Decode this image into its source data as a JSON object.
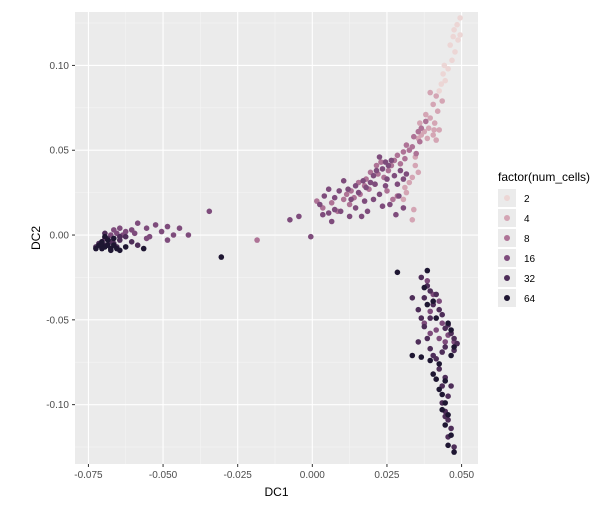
{
  "chart_data": {
    "type": "scatter",
    "xlabel": "DC1",
    "ylabel": "DC2",
    "xlim": [
      -0.0795,
      0.0555
    ],
    "ylim": [
      -0.135,
      0.1315
    ],
    "x_ticks": [
      {
        "value": -0.075,
        "label": "-0.075"
      },
      {
        "value": -0.05,
        "label": "-0.050"
      },
      {
        "value": -0.025,
        "label": "-0.025"
      },
      {
        "value": 0.0,
        "label": "0.000"
      },
      {
        "value": 0.025,
        "label": "0.025"
      },
      {
        "value": 0.05,
        "label": "0.050"
      }
    ],
    "y_ticks": [
      {
        "value": -0.1,
        "label": "-0.10"
      },
      {
        "value": -0.05,
        "label": "-0.05"
      },
      {
        "value": 0.0,
        "label": "0.00"
      },
      {
        "value": 0.05,
        "label": "0.05"
      },
      {
        "value": 0.1,
        "label": "0.10"
      }
    ],
    "grid": true,
    "legend": {
      "title": "factor(num_cells)",
      "position": "right",
      "entries": [
        {
          "label": "2",
          "color": "#ECD6D5"
        },
        {
          "label": "4",
          "color": "#D4A5B4"
        },
        {
          "label": "8",
          "color": "#AE7396"
        },
        {
          "label": "16",
          "color": "#7E4C7C"
        },
        {
          "label": "32",
          "color": "#4E2E59"
        },
        {
          "label": "64",
          "color": "#1E1632"
        }
      ]
    },
    "series": [
      {
        "name": "2",
        "points": [
          [
            0.0495,
            0.128
          ],
          [
            0.0485,
            0.124
          ],
          [
            0.0475,
            0.121
          ],
          [
            0.0495,
            0.118
          ],
          [
            0.0488,
            0.115
          ],
          [
            0.0472,
            0.117
          ],
          [
            0.0462,
            0.112
          ],
          [
            0.0478,
            0.108
          ],
          [
            0.0468,
            0.103
          ],
          [
            0.0455,
            0.098
          ],
          [
            0.0442,
            0.1
          ],
          [
            0.0438,
            0.095
          ],
          [
            0.0445,
            0.091
          ],
          [
            0.0432,
            0.089
          ],
          [
            0.0425,
            0.085
          ]
        ]
      },
      {
        "name": "4",
        "points": [
          [
            0.0415,
            0.082
          ],
          [
            0.0395,
            0.084
          ],
          [
            0.0435,
            0.079
          ],
          [
            0.0405,
            0.077
          ],
          [
            0.042,
            0.073
          ],
          [
            0.038,
            0.071
          ],
          [
            0.0395,
            0.069
          ],
          [
            0.041,
            0.066
          ],
          [
            0.039,
            0.063
          ],
          [
            0.0425,
            0.062
          ],
          [
            0.0375,
            0.061
          ],
          [
            0.036,
            0.066
          ],
          [
            0.0405,
            0.059
          ],
          [
            0.0385,
            0.057
          ],
          [
            0.0415,
            0.056
          ],
          [
            0.0365,
            0.059
          ],
          [
            0.0355,
            0.057
          ],
          [
            0.0408,
            0.062
          ],
          [
            0.0345,
            0.046
          ],
          [
            0.0345,
            0.041
          ],
          [
            0.0355,
            0.037
          ],
          [
            0.0335,
            0.034
          ],
          [
            0.0325,
            0.031
          ],
          [
            0.031,
            0.028
          ],
          [
            0.0315,
            0.025
          ],
          [
            0.0305,
            0.021
          ],
          [
            0.0335,
            0.009
          ],
          [
            0.034,
            0.015
          ]
        ]
      },
      {
        "name": "8",
        "points": [
          [
            0.038,
            0.067
          ],
          [
            0.0365,
            0.063
          ],
          [
            0.0355,
            0.061
          ],
          [
            0.034,
            0.058
          ],
          [
            0.036,
            0.055
          ],
          [
            0.0335,
            0.052
          ],
          [
            0.0325,
            0.05
          ],
          [
            0.0348,
            0.048
          ],
          [
            0.0315,
            0.053
          ],
          [
            0.0305,
            0.049
          ],
          [
            0.031,
            0.045
          ],
          [
            0.0295,
            0.042
          ],
          [
            0.0285,
            0.047
          ],
          [
            0.0275,
            0.044
          ],
          [
            0.0265,
            0.041
          ],
          [
            0.0255,
            0.038
          ],
          [
            0.024,
            0.034
          ],
          [
            0.022,
            0.036
          ],
          [
            0.021,
            0.03
          ],
          [
            0.019,
            0.027
          ],
          [
            0.0175,
            0.029
          ],
          [
            0.016,
            0.024
          ],
          [
            0.014,
            0.022
          ],
          [
            0.0125,
            0.018
          ],
          [
            0.0105,
            0.021
          ],
          [
            0.0085,
            0.014
          ],
          [
            0.0065,
            0.019
          ],
          [
            0.0035,
            0.016
          ],
          [
            0.0015,
            0.02
          ],
          [
            0.025,
            0.026
          ],
          [
            0.027,
            0.021
          ],
          [
            0.0285,
            0.023
          ],
          [
            0.023,
            0.043
          ],
          [
            0.0215,
            0.041
          ],
          [
            0.0195,
            0.037
          ],
          [
            0.018,
            0.033
          ],
          [
            0.0155,
            0.031
          ],
          [
            0.013,
            0.026
          ],
          [
            0.0115,
            0.024
          ],
          [
            -0.0185,
            -0.003
          ]
        ]
      },
      {
        "name": "16",
        "points": [
          [
            0.0265,
            0.044
          ],
          [
            0.0255,
            0.041
          ],
          [
            0.0245,
            0.043
          ],
          [
            0.0235,
            0.039
          ],
          [
            0.0225,
            0.046
          ],
          [
            0.0215,
            0.038
          ],
          [
            0.0205,
            0.035
          ],
          [
            0.0195,
            0.031
          ],
          [
            0.018,
            0.028
          ],
          [
            0.017,
            0.032
          ],
          [
            0.0155,
            0.025
          ],
          [
            0.0145,
            0.029
          ],
          [
            0.013,
            0.021
          ],
          [
            0.012,
            0.027
          ],
          [
            0.0105,
            0.032
          ],
          [
            0.009,
            0.026
          ],
          [
            0.0075,
            0.022
          ],
          [
            0.0055,
            0.027
          ],
          [
            0.004,
            0.023
          ],
          [
            0.0025,
            0.018
          ],
          [
            0.0035,
            0.012
          ],
          [
            0.0055,
            0.013
          ],
          [
            0.0065,
            0.008
          ],
          [
            0.0075,
            0.015
          ],
          [
            0.0095,
            0.014
          ],
          [
            0.0125,
            0.011
          ],
          [
            0.0145,
            0.016
          ],
          [
            0.0165,
            0.011
          ],
          [
            0.0185,
            0.014
          ],
          [
            0.0205,
            0.021
          ],
          [
            0.0225,
            0.024
          ],
          [
            0.0245,
            0.029
          ],
          [
            0.0275,
            0.035
          ],
          [
            0.0285,
            0.03
          ],
          [
            0.0295,
            0.038
          ],
          [
            0.0305,
            0.033
          ],
          [
            0.0315,
            0.036
          ],
          [
            0.025,
            0.033
          ],
          [
            0.021,
            0.03
          ],
          [
            0.0175,
            0.02
          ],
          [
            0.0235,
            0.017
          ],
          [
            0.026,
            0.018
          ],
          [
            0.0305,
            0.016
          ],
          [
            0.028,
            0.012
          ],
          [
            0.029,
            0.023
          ],
          [
            -0.0075,
            0.009
          ],
          [
            -0.0045,
            0.011
          ],
          [
            -0.0005,
            -0.001
          ],
          [
            -0.0345,
            0.014
          ],
          [
            -0.0415,
            0.0
          ],
          [
            -0.0445,
            0.004
          ],
          [
            -0.0485,
            0.005
          ],
          [
            -0.0525,
            0.006
          ],
          [
            -0.0555,
            0.004
          ],
          [
            -0.0585,
            0.007
          ],
          [
            -0.0605,
            0.003
          ],
          [
            -0.0625,
            0.002
          ],
          [
            -0.0645,
            0.004
          ],
          [
            -0.0635,
            0.0
          ],
          [
            -0.0655,
            0.001
          ],
          [
            -0.0675,
            0.0
          ],
          [
            -0.0695,
            -0.002
          ],
          [
            -0.0595,
            0.001
          ],
          [
            -0.0545,
            -0.001
          ],
          [
            -0.0505,
            0.002
          ],
          [
            -0.0465,
            0.0
          ],
          [
            -0.0485,
            -0.003
          ],
          [
            -0.0555,
            -0.002
          ],
          [
            -0.0665,
            0.003
          ],
          [
            0.0395,
            -0.045
          ],
          [
            0.0375,
            -0.052
          ],
          [
            0.0415,
            -0.056
          ],
          [
            0.0435,
            -0.052
          ],
          [
            0.0395,
            -0.058
          ],
          [
            0.0425,
            -0.061
          ],
          [
            0.0455,
            -0.059
          ],
          [
            0.0445,
            -0.063
          ],
          [
            0.0475,
            -0.063
          ],
          [
            0.0385,
            -0.027
          ],
          [
            0.0405,
            -0.035
          ],
          [
            0.0425,
            -0.039
          ]
        ]
      },
      {
        "name": "32",
        "points": [
          [
            0.0365,
            -0.025
          ],
          [
            0.0385,
            -0.03
          ],
          [
            0.0395,
            -0.033
          ],
          [
            0.0375,
            -0.037
          ],
          [
            0.0415,
            -0.035
          ],
          [
            0.0405,
            -0.041
          ],
          [
            0.0425,
            -0.044
          ],
          [
            0.0395,
            -0.049
          ],
          [
            0.0435,
            -0.047
          ],
          [
            0.0445,
            -0.055
          ],
          [
            0.0455,
            -0.053
          ],
          [
            0.0465,
            -0.058
          ],
          [
            0.0475,
            -0.061
          ],
          [
            0.0485,
            -0.064
          ],
          [
            0.0445,
            -0.066
          ],
          [
            0.0475,
            -0.068
          ],
          [
            0.0435,
            -0.069
          ],
          [
            0.0415,
            -0.073
          ],
          [
            0.0425,
            -0.079
          ],
          [
            0.0445,
            -0.084
          ],
          [
            0.0435,
            -0.089
          ],
          [
            0.0455,
            -0.095
          ],
          [
            0.0435,
            -0.099
          ],
          [
            0.0445,
            -0.104
          ],
          [
            0.0455,
            -0.109
          ],
          [
            0.0465,
            -0.114
          ],
          [
            0.0455,
            -0.119
          ],
          [
            0.0475,
            -0.125
          ],
          [
            0.0335,
            -0.037
          ],
          [
            0.0355,
            -0.044
          ],
          [
            0.0365,
            -0.049
          ],
          [
            0.0375,
            -0.054
          ],
          [
            0.0385,
            -0.061
          ],
          [
            0.0395,
            -0.067
          ],
          [
            0.0405,
            -0.071
          ],
          [
            0.0355,
            -0.063
          ],
          [
            -0.0625,
            -0.001
          ],
          [
            -0.0645,
            -0.003
          ],
          [
            -0.0665,
            -0.005
          ],
          [
            -0.0685,
            -0.002
          ],
          [
            -0.0705,
            -0.004
          ],
          [
            -0.0725,
            -0.007
          ],
          [
            -0.0695,
            -0.006
          ],
          [
            -0.0655,
            -0.007
          ],
          [
            -0.0675,
            -0.004
          ],
          [
            -0.0715,
            -0.005
          ],
          [
            -0.0605,
            -0.004
          ],
          [
            -0.0585,
            -0.006
          ],
          [
            -0.0695,
            0.001
          ],
          [
            -0.0645,
            -0.001
          ],
          [
            0.0465,
            -0.089
          ],
          [
            0.0445,
            -0.107
          ]
        ]
      },
      {
        "name": "64",
        "points": [
          [
            0.0285,
            -0.022
          ],
          [
            0.0385,
            -0.021
          ],
          [
            0.0375,
            -0.031
          ],
          [
            0.0385,
            -0.041
          ],
          [
            0.0405,
            -0.039
          ],
          [
            0.0415,
            -0.049
          ],
          [
            0.0455,
            -0.052
          ],
          [
            0.0465,
            -0.056
          ],
          [
            0.0475,
            -0.066
          ],
          [
            0.0465,
            -0.071
          ],
          [
            0.0335,
            -0.071
          ],
          [
            0.0365,
            -0.072
          ],
          [
            0.0395,
            -0.074
          ],
          [
            0.0425,
            -0.076
          ],
          [
            0.0405,
            -0.082
          ],
          [
            0.0445,
            -0.086
          ],
          [
            0.0425,
            -0.091
          ],
          [
            0.0435,
            -0.094
          ],
          [
            0.0445,
            -0.099
          ],
          [
            0.0435,
            -0.103
          ],
          [
            0.0455,
            -0.106
          ],
          [
            0.0445,
            -0.112
          ],
          [
            0.0465,
            -0.118
          ],
          [
            0.0475,
            -0.128
          ],
          [
            0.0455,
            -0.124
          ],
          [
            0.0415,
            -0.085
          ],
          [
            -0.0305,
            -0.013
          ],
          [
            -0.0725,
            -0.008
          ],
          [
            -0.0715,
            -0.006
          ],
          [
            -0.0705,
            -0.008
          ],
          [
            -0.0695,
            -0.007
          ],
          [
            -0.0685,
            -0.006
          ],
          [
            -0.0675,
            -0.008
          ],
          [
            -0.0665,
            -0.006
          ],
          [
            -0.0655,
            -0.008
          ],
          [
            -0.0645,
            -0.009
          ],
          [
            -0.0685,
            -0.003
          ],
          [
            -0.0665,
            -0.002
          ],
          [
            -0.0705,
            -0.004
          ],
          [
            -0.0675,
            -0.009
          ],
          [
            -0.0705,
            -0.005
          ],
          [
            -0.0565,
            -0.008
          ],
          [
            -0.0625,
            -0.007
          ],
          [
            -0.0695,
            -0.001
          ]
        ]
      }
    ]
  }
}
